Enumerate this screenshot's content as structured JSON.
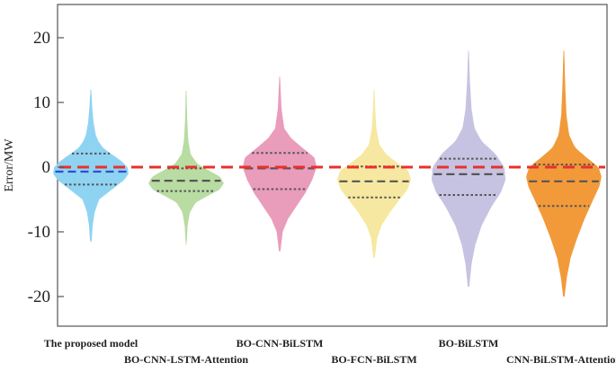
{
  "chart_data": {
    "type": "violin",
    "title": "",
    "xlabel": "",
    "ylabel": "Error/MW",
    "ylim": [
      -25,
      25
    ],
    "yticks": [
      20,
      10,
      0,
      -10,
      -20
    ],
    "ytick_labels": [
      "20",
      "10",
      "0",
      "-10",
      "-20"
    ],
    "reference_line": {
      "y": 0,
      "color": "#e8312c",
      "style": "dashed"
    },
    "categories": [
      "The proposed model",
      "BO-CNN-LSTM-Attention",
      "BO-CNN-BiLSTM",
      "BO-FCN-BiLSTM",
      "BO-BiLSTM",
      "CNN-BiLSTM-Attention"
    ],
    "series": [
      {
        "name": "The proposed model",
        "color": "#8fd3f2",
        "median_color": "#2b50d4",
        "min": -11.5,
        "max": 12,
        "q1": -2.7,
        "median": -0.7,
        "q3": 2.1,
        "profile": [
          [
            -11.5,
            0.02
          ],
          [
            -9,
            0.05
          ],
          [
            -7,
            0.1
          ],
          [
            -5,
            0.22
          ],
          [
            -3.5,
            0.55
          ],
          [
            -2,
            0.88
          ],
          [
            -1,
            1.0
          ],
          [
            0,
            0.97
          ],
          [
            1,
            0.8
          ],
          [
            2,
            0.55
          ],
          [
            3,
            0.32
          ],
          [
            4,
            0.2
          ],
          [
            5,
            0.13
          ],
          [
            7,
            0.07
          ],
          [
            9,
            0.04
          ],
          [
            12,
            0.01
          ]
        ]
      },
      {
        "name": "BO-CNN-LSTM-Attention",
        "color": "#b8dca2",
        "median_color": "#555555",
        "min": -12,
        "max": 11.8,
        "q1": -3.7,
        "median": -2.1,
        "q3": -0.2,
        "profile": [
          [
            -12,
            0.01
          ],
          [
            -9,
            0.04
          ],
          [
            -7,
            0.1
          ],
          [
            -5.5,
            0.25
          ],
          [
            -4.5,
            0.55
          ],
          [
            -3.5,
            0.88
          ],
          [
            -2.5,
            1.0
          ],
          [
            -1.5,
            0.9
          ],
          [
            -0.5,
            0.6
          ],
          [
            0.5,
            0.3
          ],
          [
            2,
            0.12
          ],
          [
            4,
            0.06
          ],
          [
            7,
            0.03
          ],
          [
            11.8,
            0.01
          ]
        ]
      },
      {
        "name": "BO-CNN-BiLSTM",
        "color": "#ea9cbb",
        "median_color": "#555555",
        "min": -13,
        "max": 14,
        "q1": -3.4,
        "median": -0.2,
        "q3": 2.2,
        "profile": [
          [
            -13,
            0.02
          ],
          [
            -10,
            0.08
          ],
          [
            -8,
            0.22
          ],
          [
            -6,
            0.45
          ],
          [
            -4,
            0.68
          ],
          [
            -2,
            0.86
          ],
          [
            0,
            0.98
          ],
          [
            1.5,
            0.92
          ],
          [
            3,
            0.6
          ],
          [
            4.5,
            0.3
          ],
          [
            6,
            0.12
          ],
          [
            9,
            0.05
          ],
          [
            14,
            0.01
          ]
        ]
      },
      {
        "name": "BO-FCN-BiLSTM",
        "color": "#f6e8a0",
        "median_color": "#555555",
        "min": -14,
        "max": 12,
        "q1": -4.7,
        "median": -2.2,
        "q3": 0.1,
        "profile": [
          [
            -14,
            0.02
          ],
          [
            -11,
            0.08
          ],
          [
            -9,
            0.2
          ],
          [
            -7,
            0.42
          ],
          [
            -5,
            0.68
          ],
          [
            -3.5,
            0.88
          ],
          [
            -2,
            0.98
          ],
          [
            -0.5,
            0.9
          ],
          [
            0.5,
            0.65
          ],
          [
            2,
            0.32
          ],
          [
            3.5,
            0.14
          ],
          [
            6,
            0.06
          ],
          [
            9,
            0.03
          ],
          [
            12,
            0.01
          ]
        ]
      },
      {
        "name": "BO-BiLSTM",
        "color": "#c6c3e2",
        "median_color": "#555555",
        "min": -18.5,
        "max": 18,
        "q1": -4.3,
        "median": -1.1,
        "q3": 1.3,
        "profile": [
          [
            -18.5,
            0.02
          ],
          [
            -15,
            0.08
          ],
          [
            -12,
            0.18
          ],
          [
            -9,
            0.35
          ],
          [
            -6,
            0.62
          ],
          [
            -4,
            0.85
          ],
          [
            -2,
            0.98
          ],
          [
            0,
            0.95
          ],
          [
            2,
            0.72
          ],
          [
            4,
            0.35
          ],
          [
            6,
            0.16
          ],
          [
            9,
            0.08
          ],
          [
            13,
            0.04
          ],
          [
            18,
            0.01
          ]
        ]
      },
      {
        "name": "CNN-BiLSTM-Attention",
        "color": "#f29a3a",
        "median_color": "#555555",
        "min": -20,
        "max": 18,
        "q1": -6.0,
        "median": -2.2,
        "q3": 0.4,
        "profile": [
          [
            -20,
            0.02
          ],
          [
            -17,
            0.08
          ],
          [
            -14,
            0.18
          ],
          [
            -11,
            0.35
          ],
          [
            -8,
            0.55
          ],
          [
            -5,
            0.78
          ],
          [
            -3,
            0.94
          ],
          [
            -1.5,
            1.0
          ],
          [
            0,
            0.92
          ],
          [
            1.5,
            0.6
          ],
          [
            3,
            0.3
          ],
          [
            5,
            0.14
          ],
          [
            8,
            0.07
          ],
          [
            12,
            0.04
          ],
          [
            18,
            0.01
          ]
        ]
      }
    ]
  }
}
